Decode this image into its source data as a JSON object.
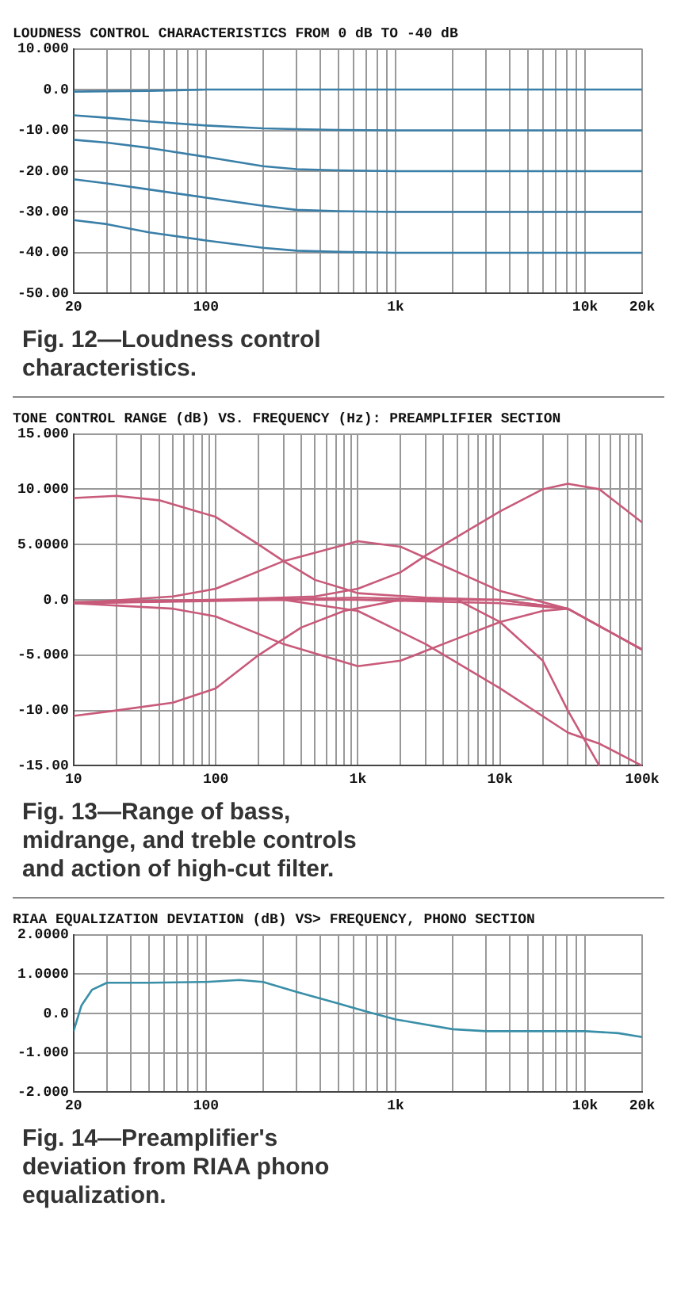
{
  "chart_data": [
    {
      "type": "line",
      "title": "LOUDNESS CONTROL CHARACTERISTICS FROM 0 dB TO -40 dB",
      "annotations": [
        "Fig. 12—Loudness control characteristics."
      ],
      "log": "x",
      "grid": true,
      "marker": "none",
      "x": [
        20,
        30,
        50,
        100,
        200,
        300,
        500,
        1000,
        2000,
        5000,
        10000,
        20000
      ],
      "series": [
        {
          "color": "#3a7fa8",
          "values": [
            -0.5,
            -0.4,
            -0.3,
            0,
            0,
            0,
            0,
            0,
            0,
            0,
            0,
            0
          ]
        },
        {
          "color": "#3a7fa8",
          "values": [
            -6.3,
            -6.9,
            -7.8,
            -8.8,
            -9.5,
            -9.7,
            -9.9,
            -10,
            -10,
            -10,
            -10,
            -10
          ]
        },
        {
          "color": "#3a7fa8",
          "values": [
            -12.3,
            -13,
            -14.3,
            -16.5,
            -18.8,
            -19.5,
            -19.8,
            -20,
            -20,
            -20,
            -20,
            -20
          ]
        },
        {
          "color": "#3a7fa8",
          "values": [
            -22,
            -23,
            -24.5,
            -26.5,
            -28.5,
            -29.5,
            -29.8,
            -30,
            -30,
            -30,
            -30,
            -30
          ]
        },
        {
          "color": "#3a7fa8",
          "values": [
            -32,
            -33,
            -35,
            -37,
            -38.8,
            -39.5,
            -39.8,
            -40,
            -40,
            -40,
            -40,
            -40
          ]
        }
      ],
      "xlim": [
        20,
        20000
      ],
      "xticks": [
        20,
        {
          "value": 30,
          "label": null
        },
        {
          "value": 40,
          "label": null
        },
        {
          "value": 50,
          "label": null
        },
        {
          "value": 60,
          "label": null
        },
        {
          "value": 70,
          "label": null
        },
        {
          "value": 80,
          "label": null
        },
        {
          "value": 90,
          "label": null
        },
        100,
        {
          "value": 200,
          "label": null
        },
        {
          "value": 300,
          "label": null
        },
        {
          "value": 400,
          "label": null
        },
        {
          "value": 500,
          "label": null
        },
        {
          "value": 600,
          "label": null
        },
        {
          "value": 700,
          "label": null
        },
        {
          "value": 800,
          "label": null
        },
        {
          "value": 900,
          "label": null
        },
        {
          "value": 1000,
          "label": "1k"
        },
        {
          "value": 2000,
          "label": null
        },
        {
          "value": 3000,
          "label": null
        },
        {
          "value": 4000,
          "label": null
        },
        {
          "value": 5000,
          "label": null
        },
        {
          "value": 6000,
          "label": null
        },
        {
          "value": 7000,
          "label": null
        },
        {
          "value": 8000,
          "label": null
        },
        {
          "value": 9000,
          "label": null
        },
        {
          "value": 10000,
          "label": "10k"
        },
        {
          "value": 20000,
          "label": "20k"
        }
      ],
      "ylim": [
        -50,
        10
      ],
      "yticks": [
        {
          "value": 10,
          "label": "10.000"
        },
        {
          "value": 0,
          "label": "0.0"
        },
        {
          "value": -10,
          "label": "-10.00"
        },
        {
          "value": -20,
          "label": "-20.00"
        },
        {
          "value": -30,
          "label": "-30.00"
        },
        {
          "value": -40,
          "label": "-40.00"
        },
        {
          "value": -50,
          "label": "-50.00"
        }
      ]
    },
    {
      "type": "line",
      "title": "TONE CONTROL RANGE (dB) VS. FREQUENCY (Hz): PREAMPLIFIER SECTION",
      "annotations": [
        "Fig. 13—Range of bass, midrange, and treble controls and action of high-cut filter."
      ],
      "log": "x",
      "grid": true,
      "marker": "none",
      "series": [
        {
          "color": "#c85a7a",
          "x": [
            10,
            20,
            40,
            100,
            200,
            300,
            500,
            800,
            1000,
            3000,
            10000,
            30000,
            100000
          ],
          "values": [
            9.2,
            9.4,
            9,
            7.5,
            5,
            3.5,
            1.8,
            1,
            0.6,
            0.2,
            0,
            -0.8,
            -4.5
          ]
        },
        {
          "color": "#c85a7a",
          "x": [
            10,
            20,
            50,
            100,
            200,
            400,
            800,
            2000,
            10000,
            30000,
            100000
          ],
          "values": [
            -10.5,
            -10,
            -9.3,
            -8,
            -5,
            -2.5,
            -1,
            0,
            0,
            -0.8,
            -4.5
          ]
        },
        {
          "color": "#c85a7a",
          "x": [
            10,
            50,
            100,
            300,
            1000,
            2000,
            3000,
            10000,
            30000,
            100000
          ],
          "values": [
            -0.3,
            0.3,
            1,
            3.5,
            5.3,
            4.8,
            3.8,
            0.8,
            -0.8,
            -4.5
          ]
        },
        {
          "color": "#c85a7a",
          "x": [
            10,
            50,
            100,
            300,
            1000,
            2000,
            5000,
            10000,
            20000,
            30000
          ],
          "values": [
            -0.3,
            -0.8,
            -1.5,
            -4,
            -6,
            -5.5,
            -3.5,
            -2,
            -1,
            -0.8
          ]
        },
        {
          "color": "#c85a7a",
          "x": [
            10,
            100,
            500,
            1000,
            2000,
            3000,
            10000,
            20000,
            30000,
            50000,
            100000
          ],
          "values": [
            -0.3,
            0,
            0.3,
            1,
            2.5,
            4,
            8,
            10,
            10.5,
            10,
            7
          ]
        },
        {
          "color": "#c85a7a",
          "x": [
            10,
            300,
            1000,
            3000,
            10000,
            30000,
            50000,
            100000
          ],
          "values": [
            -0.3,
            0,
            -1,
            -4,
            -8,
            -12,
            -13,
            -15
          ]
        },
        {
          "color": "#c85a7a",
          "x": [
            10,
            1000,
            5000,
            10000,
            20000,
            30000,
            50000
          ],
          "values": [
            -0.3,
            0.2,
            0,
            -2,
            -5.5,
            -10,
            -15
          ]
        },
        {
          "color": "#c85a7a",
          "x": [
            10,
            100,
            1000,
            10000,
            30000
          ],
          "values": [
            -0.2,
            0,
            0,
            -0.3,
            -0.8
          ]
        }
      ],
      "xlim": [
        10,
        100000
      ],
      "xticks": [
        10,
        {
          "value": 20,
          "label": null
        },
        {
          "value": 30,
          "label": null
        },
        {
          "value": 40,
          "label": null
        },
        {
          "value": 50,
          "label": null
        },
        {
          "value": 60,
          "label": null
        },
        {
          "value": 70,
          "label": null
        },
        {
          "value": 80,
          "label": null
        },
        {
          "value": 90,
          "label": null
        },
        100,
        {
          "value": 200,
          "label": null
        },
        {
          "value": 300,
          "label": null
        },
        {
          "value": 400,
          "label": null
        },
        {
          "value": 500,
          "label": null
        },
        {
          "value": 600,
          "label": null
        },
        {
          "value": 700,
          "label": null
        },
        {
          "value": 800,
          "label": null
        },
        {
          "value": 900,
          "label": null
        },
        {
          "value": 1000,
          "label": "1k"
        },
        {
          "value": 2000,
          "label": null
        },
        {
          "value": 3000,
          "label": null
        },
        {
          "value": 4000,
          "label": null
        },
        {
          "value": 5000,
          "label": null
        },
        {
          "value": 6000,
          "label": null
        },
        {
          "value": 7000,
          "label": null
        },
        {
          "value": 8000,
          "label": null
        },
        {
          "value": 9000,
          "label": null
        },
        {
          "value": 10000,
          "label": "10k"
        },
        {
          "value": 20000,
          "label": null
        },
        {
          "value": 30000,
          "label": null
        },
        {
          "value": 40000,
          "label": null
        },
        {
          "value": 50000,
          "label": null
        },
        {
          "value": 60000,
          "label": null
        },
        {
          "value": 70000,
          "label": null
        },
        {
          "value": 80000,
          "label": null
        },
        {
          "value": 90000,
          "label": null
        },
        {
          "value": 100000,
          "label": "100k"
        }
      ],
      "ylim": [
        -15,
        15
      ],
      "yticks": [
        {
          "value": 15,
          "label": "15.000"
        },
        {
          "value": 10,
          "label": "10.000"
        },
        {
          "value": 5,
          "label": "5.0000"
        },
        {
          "value": 0,
          "label": "0.0"
        },
        {
          "value": -5,
          "label": "-5.000"
        },
        {
          "value": -10,
          "label": "-10.00"
        },
        {
          "value": -15,
          "label": "-15.00"
        }
      ]
    },
    {
      "type": "line",
      "title": "RIAA EQUALIZATION DEVIATION (dB) VS> FREQUENCY, PHONO SECTION",
      "annotations": [
        "Fig. 14—Preamplifier's deviation from RIAA phono equalization."
      ],
      "log": "x",
      "grid": true,
      "marker": "none",
      "x": [
        20,
        22,
        25,
        30,
        50,
        100,
        150,
        200,
        300,
        500,
        700,
        1000,
        2000,
        3000,
        10000,
        15000,
        20000
      ],
      "series": [
        {
          "color": "#3a8fa8",
          "values": [
            -0.45,
            0.2,
            0.6,
            0.78,
            0.78,
            0.8,
            0.85,
            0.8,
            0.55,
            0.25,
            0.05,
            -0.15,
            -0.4,
            -0.45,
            -0.45,
            -0.5,
            -0.6
          ]
        }
      ],
      "xlim": [
        20,
        20000
      ],
      "xticks": [
        20,
        {
          "value": 30,
          "label": null
        },
        {
          "value": 40,
          "label": null
        },
        {
          "value": 50,
          "label": null
        },
        {
          "value": 60,
          "label": null
        },
        {
          "value": 70,
          "label": null
        },
        {
          "value": 80,
          "label": null
        },
        {
          "value": 90,
          "label": null
        },
        100,
        {
          "value": 200,
          "label": null
        },
        {
          "value": 300,
          "label": null
        },
        {
          "value": 400,
          "label": null
        },
        {
          "value": 500,
          "label": null
        },
        {
          "value": 600,
          "label": null
        },
        {
          "value": 700,
          "label": null
        },
        {
          "value": 800,
          "label": null
        },
        {
          "value": 900,
          "label": null
        },
        {
          "value": 1000,
          "label": "1k"
        },
        {
          "value": 2000,
          "label": null
        },
        {
          "value": 3000,
          "label": null
        },
        {
          "value": 4000,
          "label": null
        },
        {
          "value": 5000,
          "label": null
        },
        {
          "value": 6000,
          "label": null
        },
        {
          "value": 7000,
          "label": null
        },
        {
          "value": 8000,
          "label": null
        },
        {
          "value": 9000,
          "label": null
        },
        {
          "value": 10000,
          "label": "10k"
        },
        {
          "value": 20000,
          "label": "20k"
        }
      ],
      "ylim": [
        -2,
        2
      ],
      "yticks": [
        {
          "value": 2,
          "label": "2.0000"
        },
        {
          "value": 1,
          "label": "1.0000"
        },
        {
          "value": 0,
          "label": "0.0"
        },
        {
          "value": -1,
          "label": "-1.000"
        },
        {
          "value": -2,
          "label": "-2.000"
        }
      ]
    }
  ]
}
